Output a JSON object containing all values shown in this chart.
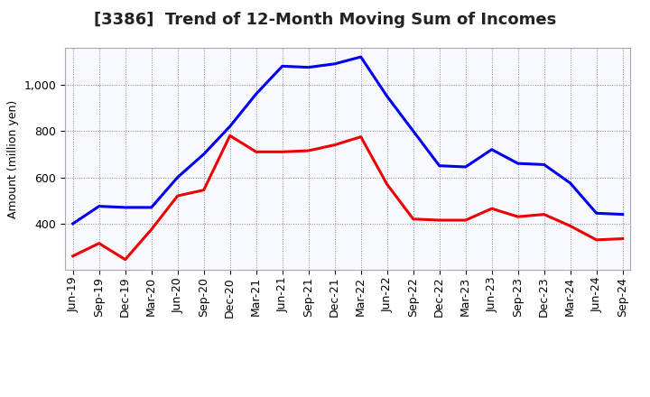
{
  "title": "[3386]  Trend of 12-Month Moving Sum of Incomes",
  "ylabel": "Amount (million yen)",
  "x_labels": [
    "Jun-19",
    "Sep-19",
    "Dec-19",
    "Mar-20",
    "Jun-20",
    "Sep-20",
    "Dec-20",
    "Mar-21",
    "Jun-21",
    "Sep-21",
    "Dec-21",
    "Mar-22",
    "Jun-22",
    "Sep-22",
    "Dec-22",
    "Mar-23",
    "Jun-23",
    "Sep-23",
    "Dec-23",
    "Mar-24",
    "Jun-24",
    "Sep-24"
  ],
  "ordinary_income": [
    400,
    475,
    470,
    470,
    600,
    700,
    820,
    960,
    1080,
    1075,
    1090,
    1120,
    950,
    800,
    650,
    645,
    720,
    660,
    655,
    575,
    445,
    440
  ],
  "net_income": [
    260,
    315,
    245,
    375,
    520,
    545,
    780,
    710,
    710,
    715,
    740,
    775,
    570,
    420,
    415,
    415,
    465,
    430,
    440,
    390,
    330,
    335
  ],
  "ordinary_color": "#0000ee",
  "net_color": "#ee0000",
  "ylim_min": 200,
  "ylim_max": 1160,
  "yticks": [
    400,
    600,
    800,
    1000
  ],
  "bg_color": "#f0f0ff",
  "plot_bg_color": "#f8f8ff",
  "grid_color": "#888899",
  "line_width": 2.2,
  "title_fontsize": 13,
  "axis_fontsize": 9,
  "tick_fontsize": 9,
  "legend_fontsize": 10
}
